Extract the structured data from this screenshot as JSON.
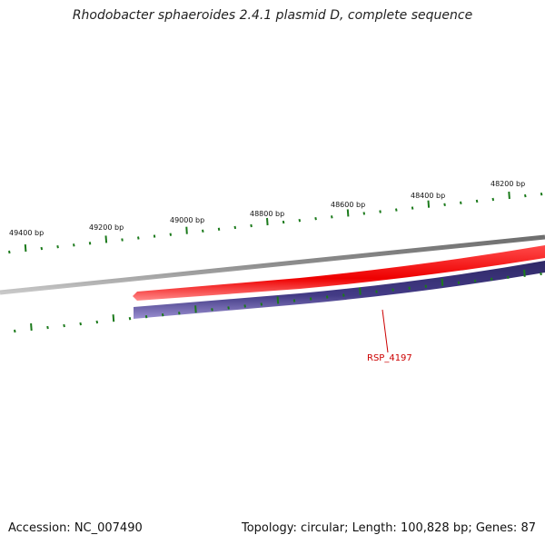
{
  "title": "Rhodobacter sphaeroides 2.4.1 plasmid D, complete sequence",
  "footer": {
    "accession": "Accession: NC_007490",
    "summary": "Topology: circular; Length: 100,828 bp; Genes: 87"
  },
  "map": {
    "ticks": [
      "49400 bp",
      "49200 bp",
      "49000 bp",
      "48800 bp",
      "48600 bp",
      "48400 bp",
      "48200 bp"
    ],
    "genes": [
      {
        "label": "RSP_4197",
        "strand": "reverse"
      }
    ],
    "colors": {
      "backbone": "#8a8a8a",
      "gene": "#ff1111",
      "feature_track": "#3c3579",
      "ticks": "#1b7a1b",
      "gene_label": "#cc0000"
    }
  }
}
